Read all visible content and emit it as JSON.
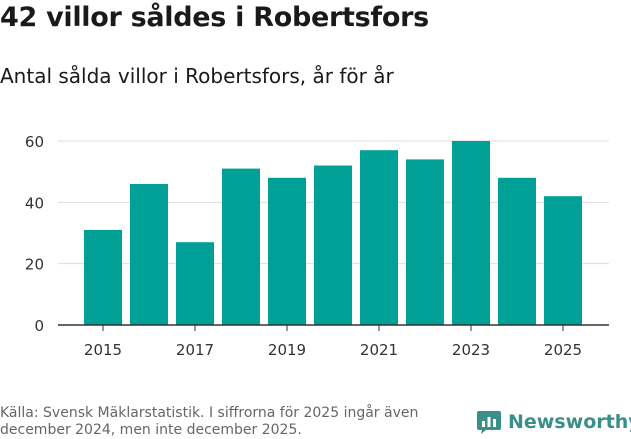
{
  "title": "42 villor såldes i Robertsfors",
  "subtitle": "Antal sålda villor i Robertsfors, år för år",
  "footer": {
    "note": "Källa: Svensk Mäklarstatistik. I siffrorna för 2025 ingår även december 2024, men inte december 2025.",
    "brand": "Newsworthy",
    "brand_icon": "newsworthy-logo-icon"
  },
  "colors": {
    "bar": "#00a096",
    "brand": "#3a8f88",
    "grid": "#dddddd",
    "axis": "#333333"
  },
  "chart_data": {
    "type": "bar",
    "title": "",
    "xlabel": "",
    "ylabel": "",
    "categories": [
      "2015",
      "2016",
      "2017",
      "2018",
      "2019",
      "2020",
      "2021",
      "2022",
      "2023",
      "2024",
      "2025"
    ],
    "values": [
      31,
      46,
      27,
      51,
      48,
      52,
      57,
      54,
      60,
      48,
      42
    ],
    "x_tick_labels": [
      "2015",
      "2017",
      "2019",
      "2021",
      "2023",
      "2025"
    ],
    "y_ticks": [
      0,
      20,
      40,
      60
    ],
    "ylim": [
      0,
      60
    ],
    "grid": true,
    "legend": "none"
  }
}
